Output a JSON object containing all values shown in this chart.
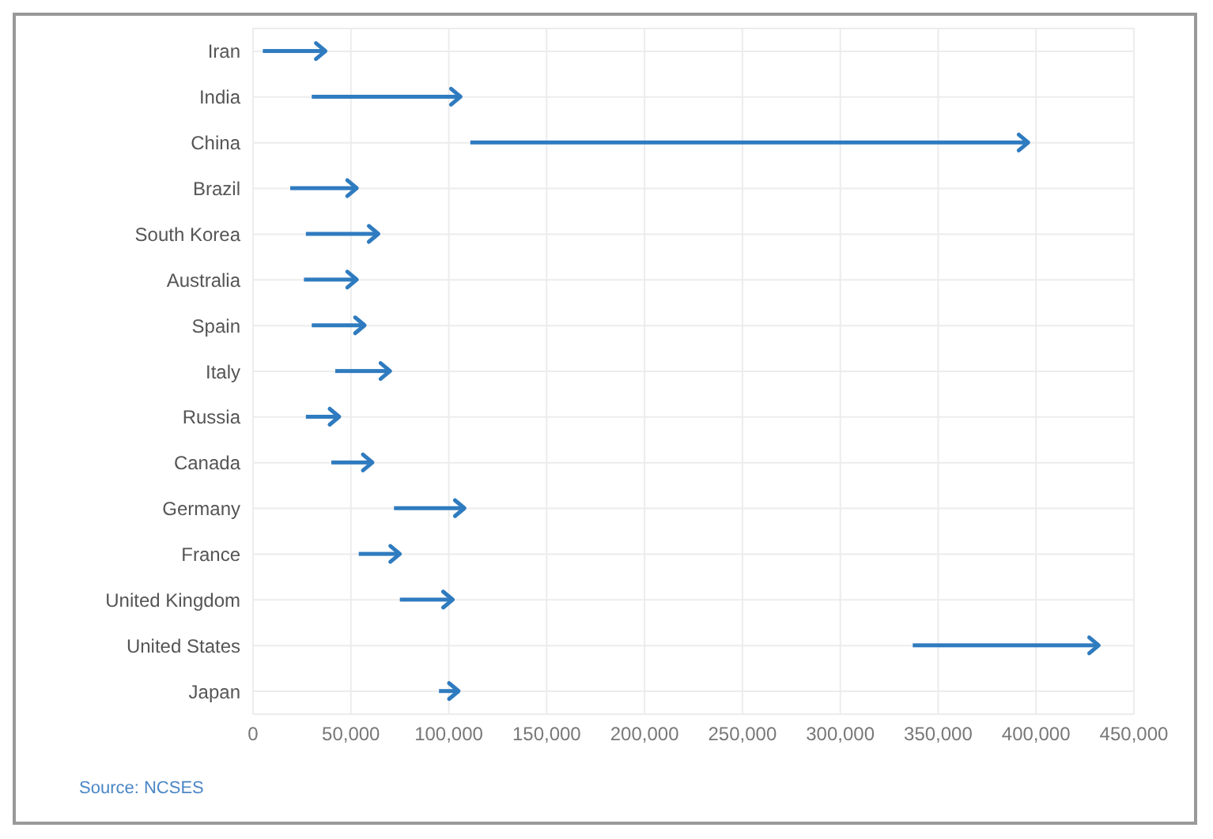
{
  "chart_data": {
    "type": "bar",
    "orientation": "horizontal",
    "categories": [
      "Iran",
      "India",
      "China",
      "Brazil",
      "South Korea",
      "Australia",
      "Spain",
      "Italy",
      "Russia",
      "Canada",
      "Germany",
      "France",
      "United Kingdom",
      "United States",
      "Japan"
    ],
    "base": [
      5000,
      30000,
      111000,
      19000,
      27000,
      26000,
      30000,
      42000,
      27000,
      40000,
      72000,
      54000,
      75000,
      337000,
      95000
    ],
    "values": [
      32000,
      76000,
      285000,
      34000,
      37000,
      27000,
      27000,
      28000,
      17000,
      21000,
      36000,
      21000,
      27000,
      95000,
      10000
    ],
    "color": "#2f7bbf",
    "xlim": [
      0,
      450000
    ],
    "xticks": [
      0,
      {
        "value": 50000,
        "label": "50,000"
      },
      {
        "value": 100000,
        "label": "100,000"
      },
      {
        "value": 150000,
        "label": "150,000"
      },
      {
        "value": 200000,
        "label": "200,000"
      },
      {
        "value": 250000,
        "label": "250,000"
      },
      {
        "value": 300000,
        "label": "300,000"
      },
      {
        "value": 350000,
        "label": "350,000"
      },
      {
        "value": 400000,
        "label": "400,000"
      },
      {
        "value": 450000,
        "label": "450,000"
      }
    ],
    "grid": true,
    "annotations": [
      "Source: NCSES"
    ]
  }
}
